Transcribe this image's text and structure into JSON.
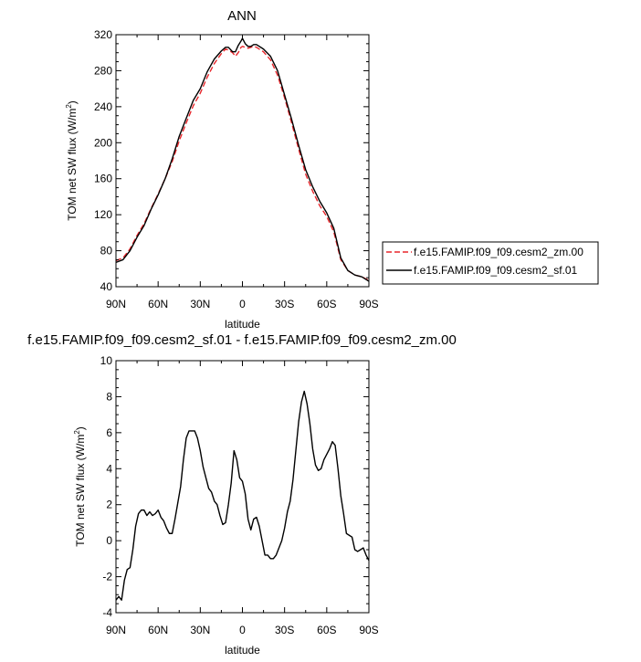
{
  "chart_data": [
    {
      "type": "line",
      "title": "ANN",
      "xlabel": "latitude",
      "ylabel": "TOM net SW flux (W/m",
      "ylabel_sup": "2",
      "ylabel_end": ")",
      "xlim": [
        90,
        -90
      ],
      "ylim": [
        40,
        320
      ],
      "xticks": [
        90,
        60,
        30,
        0,
        -30,
        -60,
        -90
      ],
      "xtick_labels": [
        "90N",
        "60N",
        "30N",
        "0",
        "30S",
        "60S",
        "90S"
      ],
      "yticks": [
        40,
        80,
        120,
        160,
        200,
        240,
        280,
        320
      ],
      "ytick_labels": [
        "40",
        "80",
        "120",
        "160",
        "200",
        "240",
        "280",
        "320"
      ],
      "legend_position": "right",
      "series": [
        {
          "name": "f.e15.FAMIP.f09_f09.cesm2_zm.00",
          "color": "#e8262b",
          "dash": "dashed",
          "x": [
            90,
            85,
            80,
            75,
            70,
            65,
            60,
            55,
            50,
            45,
            40,
            35,
            30,
            25,
            20,
            15,
            12,
            10,
            7,
            5,
            3,
            1,
            0,
            -2,
            -4,
            -6,
            -8,
            -10,
            -15,
            -20,
            -25,
            -30,
            -35,
            -40,
            -45,
            -50,
            -55,
            -60,
            -65,
            -70,
            -75,
            -80,
            -85,
            -90
          ],
          "y": [
            69,
            72,
            82,
            97,
            110,
            127,
            143,
            160,
            179,
            202,
            222,
            241,
            255,
            273,
            288,
            299,
            304,
            303,
            300,
            296,
            300,
            306,
            307,
            306,
            305,
            306,
            307,
            306,
            301,
            292,
            275,
            250,
            222,
            193,
            165,
            146,
            130,
            118,
            101,
            70,
            58,
            53,
            51,
            47
          ]
        },
        {
          "name": "f.e15.FAMIP.f09_f09.cesm2_sf.01",
          "color": "#000000",
          "dash": "solid",
          "x": [
            90,
            85,
            80,
            75,
            70,
            65,
            60,
            55,
            50,
            45,
            40,
            35,
            30,
            25,
            20,
            15,
            12,
            10,
            7,
            5,
            3,
            1,
            0,
            -2,
            -4,
            -6,
            -8,
            -10,
            -15,
            -20,
            -25,
            -30,
            -35,
            -40,
            -45,
            -50,
            -55,
            -60,
            -65,
            -70,
            -75,
            -80,
            -85,
            -90
          ],
          "y": [
            67,
            70,
            80,
            95,
            108,
            126,
            142,
            160,
            182,
            207,
            227,
            247,
            260,
            279,
            293,
            302,
            306,
            306,
            301,
            301,
            308,
            313,
            316,
            310,
            307,
            307,
            309,
            309,
            304,
            296,
            280,
            253,
            226,
            197,
            170,
            151,
            135,
            122,
            105,
            72,
            58,
            53,
            51,
            46
          ]
        }
      ]
    },
    {
      "type": "line",
      "title": "f.e15.FAMIP.f09_f09.cesm2_sf.01 - f.e15.FAMIP.f09_f09.cesm2_zm.00",
      "xlabel": "latitude",
      "ylabel": "TOM net SW flux (W/m",
      "ylabel_sup": "2",
      "ylabel_end": ")",
      "xlim": [
        90,
        -90
      ],
      "ylim": [
        -4,
        10
      ],
      "xticks": [
        90,
        60,
        30,
        0,
        -30,
        -60,
        -90
      ],
      "xtick_labels": [
        "90N",
        "60N",
        "30N",
        "0",
        "30S",
        "60S",
        "90S"
      ],
      "yticks": [
        -4,
        -2,
        0,
        2,
        4,
        6,
        8,
        10
      ],
      "ytick_labels": [
        "-4",
        "-2",
        "0",
        "2",
        "4",
        "6",
        "8",
        "10"
      ],
      "series": [
        {
          "color": "#000000",
          "dash": "solid",
          "x": [
            90,
            88,
            86,
            84,
            82,
            80,
            78,
            76,
            74,
            72,
            70,
            68,
            66,
            64,
            62,
            60,
            58,
            56,
            54,
            52,
            50,
            48,
            46,
            44,
            42,
            40,
            38,
            36,
            34,
            32,
            30,
            28,
            26,
            24,
            22,
            20,
            18,
            16,
            14,
            12,
            10,
            8,
            6,
            4,
            2,
            0,
            -2,
            -4,
            -6,
            -8,
            -10,
            -12,
            -14,
            -16,
            -18,
            -20,
            -22,
            -24,
            -26,
            -28,
            -30,
            -32,
            -34,
            -36,
            -38,
            -40,
            -42,
            -44,
            -46,
            -48,
            -50,
            -52,
            -54,
            -56,
            -58,
            -60,
            -62,
            -64,
            -66,
            -68,
            -70,
            -72,
            -74,
            -76,
            -78,
            -80,
            -82,
            -84,
            -86,
            -88,
            -90
          ],
          "y": [
            -3.3,
            -3.1,
            -3.3,
            -2.2,
            -1.6,
            -1.5,
            -0.5,
            0.8,
            1.5,
            1.7,
            1.7,
            1.4,
            1.6,
            1.4,
            1.5,
            1.7,
            1.3,
            1.1,
            0.7,
            0.4,
            0.4,
            1.2,
            2.1,
            3.0,
            4.5,
            5.7,
            6.1,
            6.1,
            6.1,
            5.7,
            5.0,
            4.1,
            3.5,
            2.9,
            2.7,
            2.2,
            2.0,
            1.4,
            0.9,
            1.0,
            2.0,
            3.2,
            5.0,
            4.5,
            3.5,
            3.3,
            2.6,
            1.2,
            0.6,
            1.2,
            1.3,
            0.8,
            0.0,
            -0.8,
            -0.8,
            -1.0,
            -1.0,
            -0.8,
            -0.4,
            0.0,
            0.7,
            1.6,
            2.2,
            3.4,
            5.0,
            6.6,
            7.7,
            8.3,
            7.6,
            6.5,
            5.1,
            4.2,
            3.9,
            4.0,
            4.5,
            4.8,
            5.1,
            5.5,
            5.3,
            4.0,
            2.5,
            1.5,
            0.4,
            0.3,
            0.2,
            -0.5,
            -0.6,
            -0.5,
            -0.4,
            -0.8,
            -1.1
          ]
        }
      ]
    }
  ]
}
